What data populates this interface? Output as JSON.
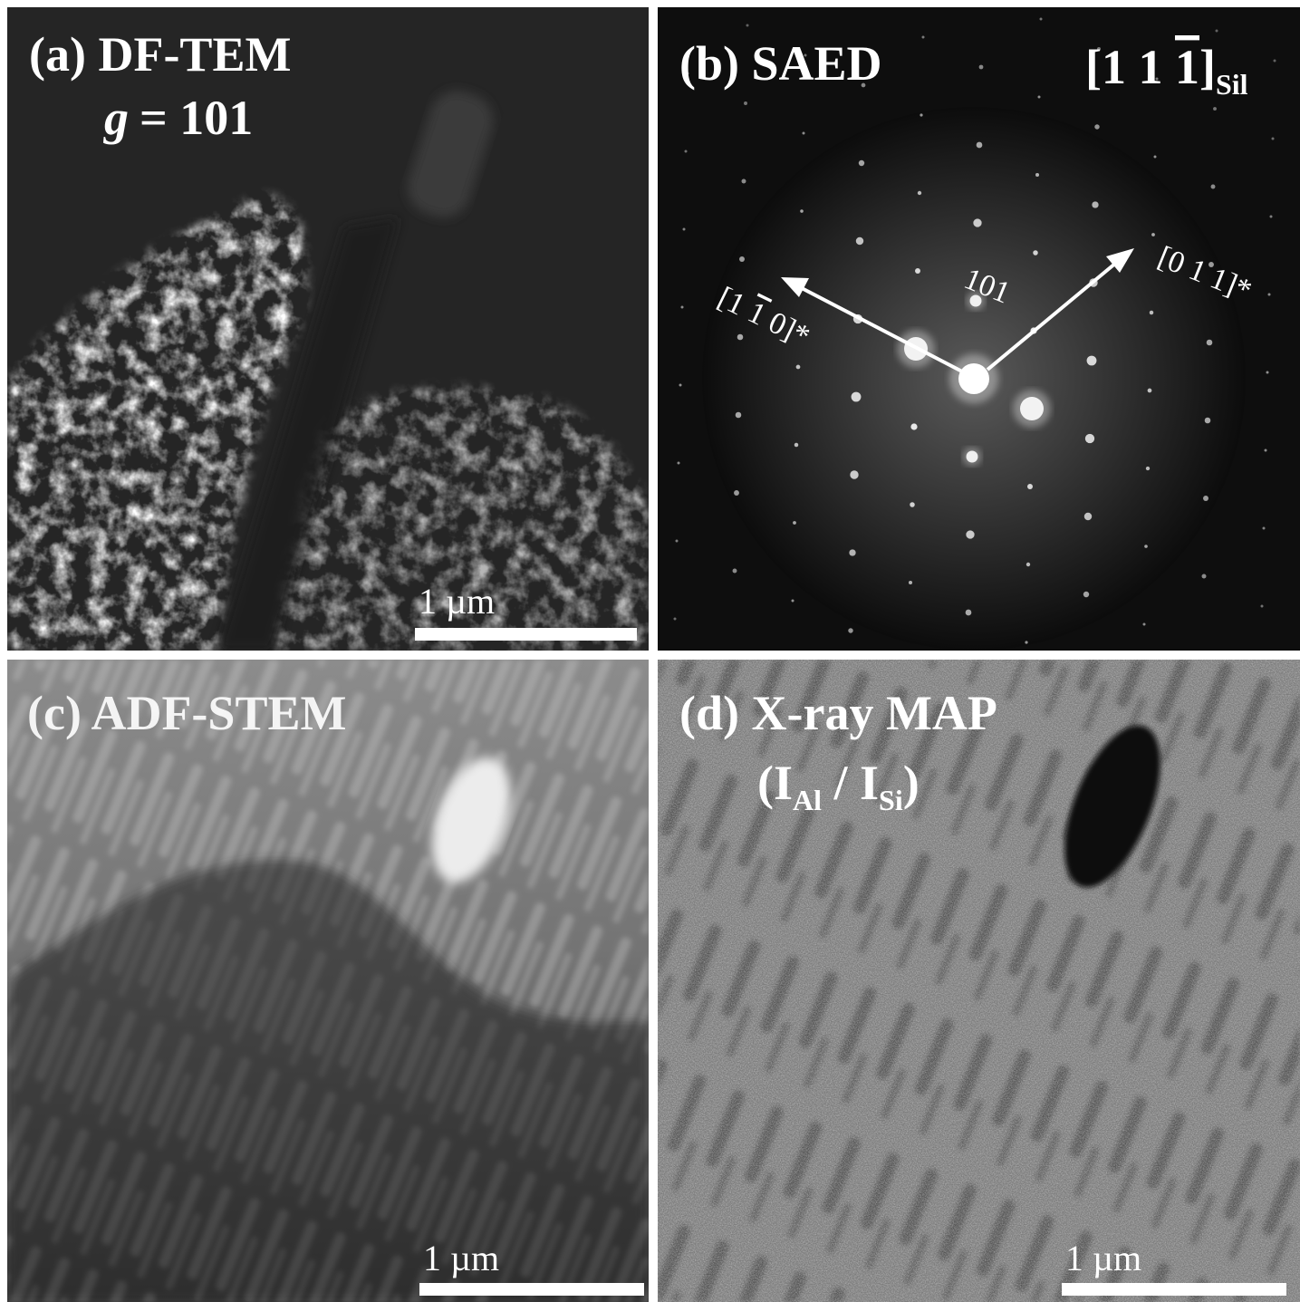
{
  "panels": [
    {
      "label": "(a) DF-TEM",
      "g_symbol": "g",
      "g_value": "= 101",
      "scale_bar": "1 µm"
    },
    {
      "label": "(b) SAED",
      "zone_axis": {
        "prefix": "[1 1 ",
        "overbar_index": "1",
        "suffix": "]",
        "subscript": "Sil"
      },
      "spot_label": "101",
      "arrows": [
        {
          "prefix": "[1 ",
          "overbar_index": "1",
          "suffix": " 0]*"
        },
        {
          "label": "[0 1 1]*"
        }
      ]
    },
    {
      "label": "(c) ADF-STEM",
      "scale_bar": "1 µm"
    },
    {
      "label": "(d) X-ray MAP",
      "ratio": {
        "open": "(I",
        "sub1": "Al",
        "mid": " / I",
        "sub2": "Si",
        "close": ")"
      },
      "scale_bar": "1 µm"
    }
  ]
}
